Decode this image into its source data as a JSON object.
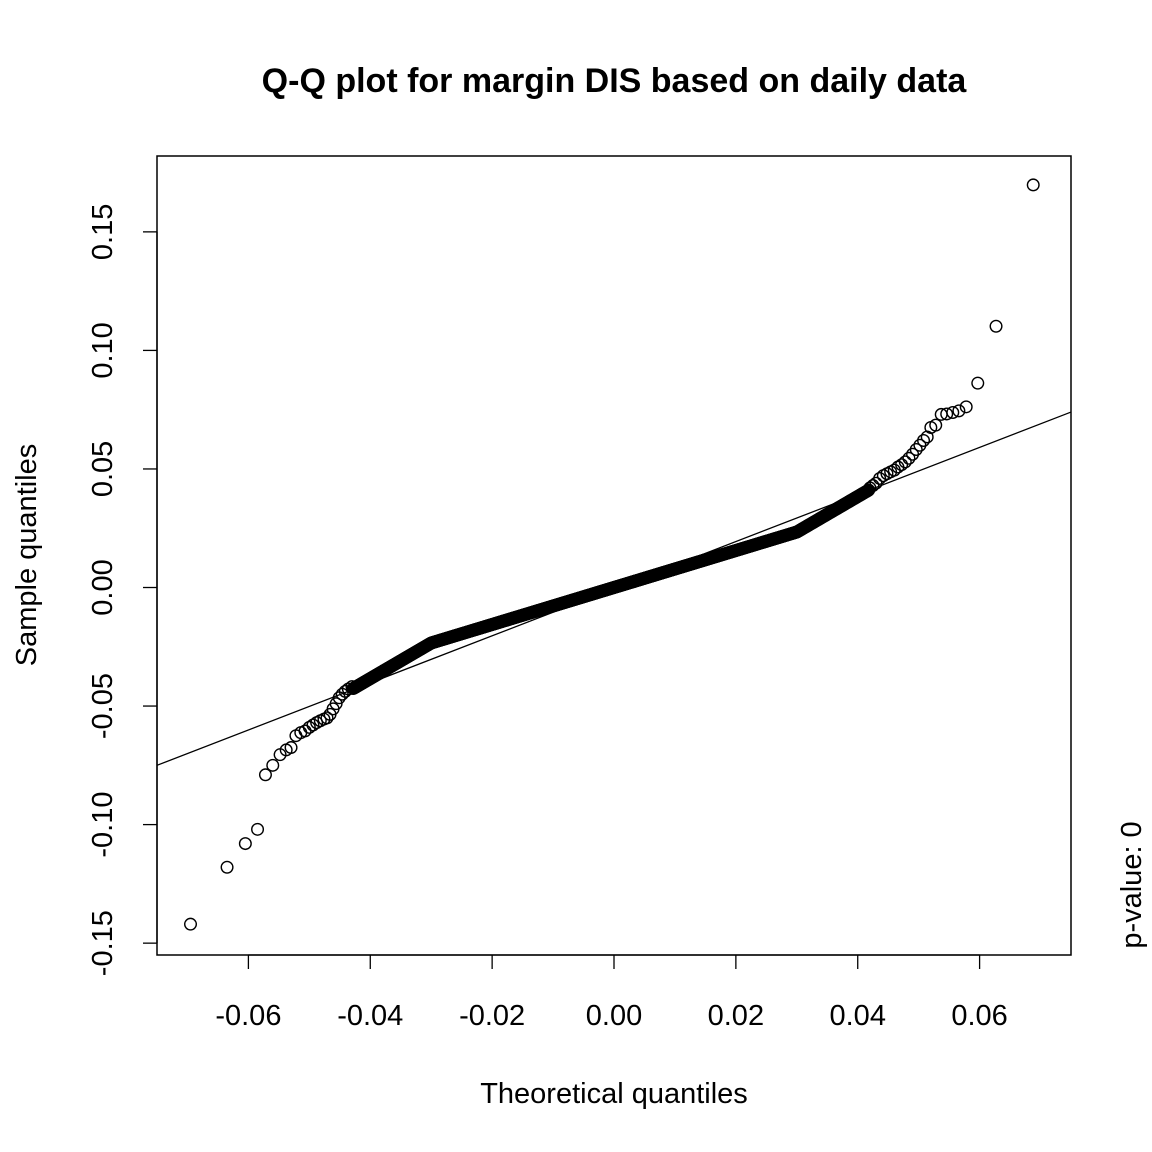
{
  "chart_data": {
    "type": "scatter",
    "title": "Q-Q plot for margin DIS based on daily data",
    "xlabel": "Theoretical quantiles",
    "ylabel": "Sample quantiles",
    "side_note": "p-value: 0",
    "xlim": [
      -0.075,
      0.075
    ],
    "ylim": [
      -0.155,
      0.182
    ],
    "x_ticks": [
      -0.06,
      -0.04,
      -0.02,
      0.0,
      0.02,
      0.04,
      0.06
    ],
    "x_tick_labels": [
      "-0.06",
      "-0.04",
      "-0.02",
      "0.00",
      "0.02",
      "0.04",
      "0.06"
    ],
    "y_ticks": [
      -0.15,
      -0.1,
      -0.05,
      0.0,
      0.05,
      0.1,
      0.15
    ],
    "y_tick_labels": [
      "-0.15",
      "-0.10",
      "-0.05",
      "0.00",
      "0.05",
      "0.10",
      "0.15"
    ],
    "grid": false,
    "reference_line": {
      "x": [
        -0.075,
        0.075
      ],
      "y": [
        -0.075,
        0.074
      ]
    },
    "series": [
      {
        "marker": "open-circle",
        "color": "#000000",
        "points": [
          [
            -0.0695,
            -0.142
          ],
          [
            -0.0635,
            -0.118
          ],
          [
            -0.0605,
            -0.108
          ],
          [
            -0.0585,
            -0.102
          ],
          [
            -0.0572,
            -0.079
          ],
          [
            -0.056,
            -0.075
          ],
          [
            -0.0548,
            -0.0705
          ],
          [
            -0.0538,
            -0.0685
          ],
          [
            -0.053,
            -0.0675
          ],
          [
            -0.0522,
            -0.0625
          ],
          [
            -0.0514,
            -0.0612
          ],
          [
            -0.0507,
            -0.0605
          ],
          [
            -0.05,
            -0.059
          ],
          [
            -0.0494,
            -0.058
          ],
          [
            -0.0488,
            -0.057
          ],
          [
            -0.0482,
            -0.0562
          ],
          [
            -0.0476,
            -0.0555
          ],
          [
            -0.0471,
            -0.055
          ],
          [
            -0.0466,
            -0.0535
          ],
          [
            -0.0461,
            -0.0512
          ],
          [
            -0.0456,
            -0.049
          ],
          [
            -0.0451,
            -0.0465
          ],
          [
            -0.0446,
            -0.045
          ],
          [
            -0.0441,
            -0.0438
          ],
          [
            -0.0436,
            -0.0428
          ],
          [
            -0.043,
            -0.0418
          ],
          [
            0.042,
            0.042
          ],
          [
            0.0425,
            0.043
          ],
          [
            0.043,
            0.044
          ],
          [
            0.0436,
            0.046
          ],
          [
            0.0442,
            0.0472
          ],
          [
            0.0448,
            0.048
          ],
          [
            0.0454,
            0.0488
          ],
          [
            0.046,
            0.0495
          ],
          [
            0.0466,
            0.0508
          ],
          [
            0.0472,
            0.0518
          ],
          [
            0.0478,
            0.053
          ],
          [
            0.0484,
            0.0545
          ],
          [
            0.049,
            0.0562
          ],
          [
            0.0496,
            0.0582
          ],
          [
            0.0502,
            0.06
          ],
          [
            0.0508,
            0.062
          ],
          [
            0.0514,
            0.0635
          ],
          [
            0.052,
            0.0675
          ],
          [
            0.0528,
            0.0685
          ],
          [
            0.0537,
            0.073
          ],
          [
            0.0546,
            0.0732
          ],
          [
            0.0556,
            0.0738
          ],
          [
            0.0566,
            0.0745
          ],
          [
            0.0578,
            0.0762
          ],
          [
            0.0597,
            0.0862
          ],
          [
            0.0627,
            0.1102
          ],
          [
            0.0688,
            0.1698
          ]
        ]
      }
    ]
  }
}
